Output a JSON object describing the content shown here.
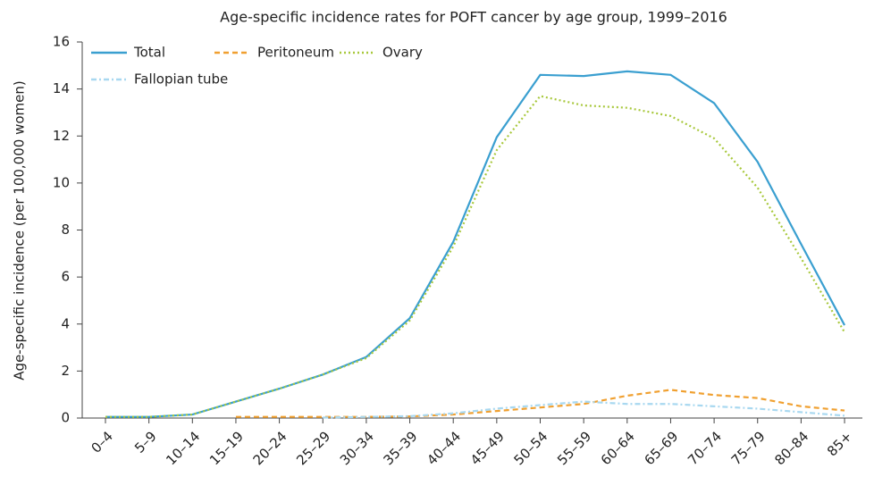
{
  "chart_data": {
    "type": "line",
    "title": "Age-specific incidence rates for POFT cancer by age group, 1999–2016",
    "y_label": "Age-specific incidence (per 100,000 women)",
    "categories": [
      "0–4",
      "5–9",
      "10–14",
      "15–19",
      "20–24",
      "25–29",
      "30–34",
      "35–39",
      "40–44",
      "45–49",
      "50–54",
      "55–59",
      "60–64",
      "65–69",
      "70–74",
      "75–79",
      "80–84",
      "85+"
    ],
    "series": [
      {
        "name": "Total",
        "color": "#3a9fd0",
        "dash": "solid",
        "values": [
          0.05,
          0.05,
          0.15,
          0.7,
          1.25,
          1.85,
          2.6,
          4.25,
          7.5,
          11.95,
          14.6,
          14.55,
          14.75,
          14.6,
          13.4,
          10.9,
          7.4,
          3.95
        ]
      },
      {
        "name": "Peritoneum",
        "color": "#f0a030",
        "dash": "dashed",
        "values": [
          null,
          null,
          null,
          0.05,
          0.05,
          0.05,
          0.05,
          0.07,
          0.15,
          0.3,
          0.45,
          0.6,
          0.95,
          1.2,
          0.98,
          0.85,
          0.5,
          0.32
        ]
      },
      {
        "name": "Ovary",
        "color": "#a8c83c",
        "dash": "dotted",
        "values": [
          0.05,
          0.05,
          0.15,
          0.7,
          1.25,
          1.85,
          2.55,
          4.15,
          7.3,
          11.4,
          13.7,
          13.3,
          13.2,
          12.85,
          11.9,
          9.8,
          6.8,
          3.65
        ]
      },
      {
        "name": "Fallopian tube",
        "color": "#a8d8f0",
        "dash": "dashdot",
        "values": [
          null,
          null,
          null,
          null,
          null,
          0.02,
          0.05,
          0.08,
          0.2,
          0.4,
          0.55,
          0.7,
          0.6,
          0.6,
          0.5,
          0.4,
          0.25,
          0.1
        ]
      }
    ],
    "ylim": [
      0,
      16
    ],
    "yticks": [
      0,
      2,
      4,
      6,
      8,
      10,
      12,
      14,
      16
    ]
  }
}
